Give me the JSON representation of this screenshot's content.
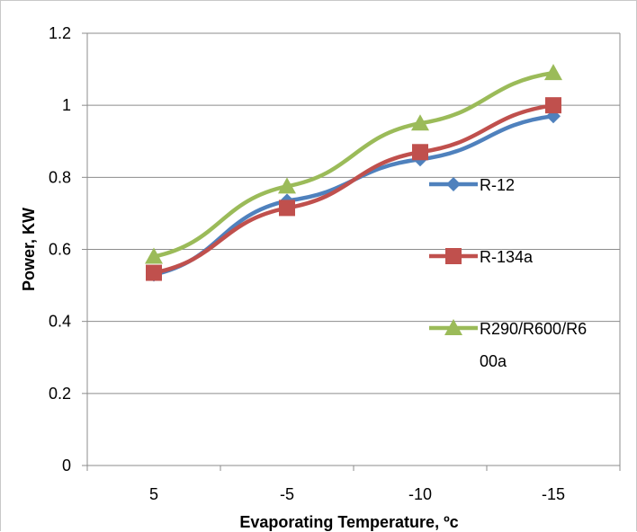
{
  "chart_data": {
    "type": "line",
    "title": "",
    "xlabel": "Evaporating Temperature, ºc",
    "ylabel": "Power, KW",
    "categories": [
      "5",
      "-5",
      "-10",
      "-15"
    ],
    "ylim": [
      0,
      1.2
    ],
    "yticks": [
      "0",
      "0.2",
      "0.4",
      "0.6",
      "0.8",
      "1",
      "1.2"
    ],
    "grid": true,
    "legend_position": "right",
    "series": [
      {
        "name": "R-12",
        "values": [
          0.53,
          0.735,
          0.85,
          0.97
        ],
        "color": "#4f81bd",
        "marker": "diamond"
      },
      {
        "name": "R-134a",
        "values": [
          0.535,
          0.715,
          0.87,
          1.0
        ],
        "color": "#c0504d",
        "marker": "square"
      },
      {
        "name": "R290/R600/R600a",
        "name_lines": [
          "R290/R600/R6",
          "00a"
        ],
        "values": [
          0.58,
          0.775,
          0.95,
          1.09
        ],
        "color": "#9bbb59",
        "marker": "triangle"
      }
    ]
  }
}
